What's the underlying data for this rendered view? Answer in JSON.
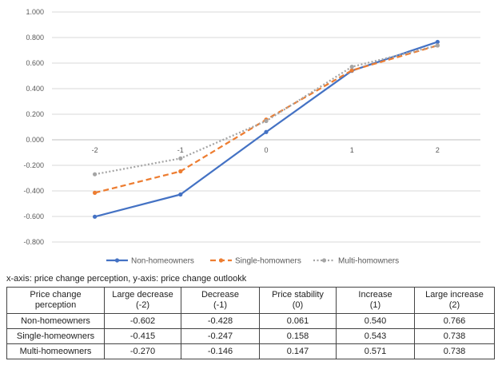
{
  "chart_data": {
    "type": "line",
    "x": [
      -2,
      -1,
      0,
      1,
      2
    ],
    "x_tick_labels": [
      "-2",
      "-1",
      "0",
      "1",
      "2"
    ],
    "y_tick_labels": [
      "1.000",
      "0.800",
      "0.600",
      "0.400",
      "0.200",
      "0.000",
      "-0.200",
      "-0.400",
      "-0.600",
      "-0.800"
    ],
    "y_ticks": [
      1.0,
      0.8,
      0.6,
      0.4,
      0.2,
      0.0,
      -0.2,
      -0.4,
      -0.6,
      -0.8
    ],
    "ylim": [
      -0.8,
      1.0
    ],
    "grid": true,
    "legend_position": "bottom",
    "series": [
      {
        "name": "Non-homeowners",
        "values": [
          -0.602,
          -0.428,
          0.061,
          0.54,
          0.766
        ],
        "color": "#4472C4",
        "style": "solid"
      },
      {
        "name": "Single-homowners",
        "values": [
          -0.415,
          -0.247,
          0.158,
          0.543,
          0.738
        ],
        "color": "#ED7D31",
        "style": "dashed"
      },
      {
        "name": "Multi-homowners",
        "values": [
          -0.27,
          -0.146,
          0.147,
          0.571,
          0.738
        ],
        "color": "#A5A5A5",
        "style": "dotted"
      }
    ]
  },
  "caption": "x-axis: price change perception, y-axis: price change outlookk",
  "table": {
    "header": [
      [
        "Price change",
        "perception"
      ],
      [
        "Large decrease",
        "(-2)"
      ],
      [
        "Decrease",
        "(-1)"
      ],
      [
        "Price stability",
        "(0)"
      ],
      [
        "Increase",
        "(1)"
      ],
      [
        "Large increase",
        "(2)"
      ]
    ],
    "rows": [
      [
        "Non-homeowners",
        "-0.602",
        "-0.428",
        "0.061",
        "0.540",
        "0.766"
      ],
      [
        "Single-homeowners",
        "-0.415",
        "-0.247",
        "0.158",
        "0.543",
        "0.738"
      ],
      [
        "Multi-homeowners",
        "-0.270",
        "-0.146",
        "0.147",
        "0.571",
        "0.738"
      ]
    ]
  }
}
